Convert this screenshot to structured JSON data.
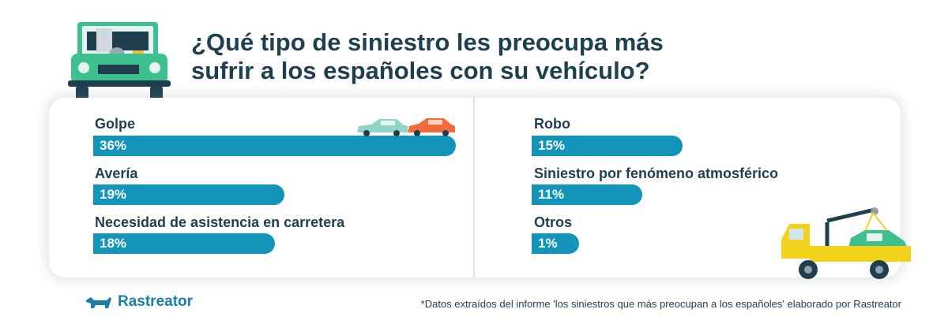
{
  "title": {
    "line1": "¿Qué tipo de siniestro les preocupa más",
    "line2": "sufrir a los españoles con su vehículo?"
  },
  "chart_data": {
    "type": "bar",
    "categories": [
      "Golpe",
      "Avería",
      "Necesidad de asistencia en carretera",
      "Robo",
      "Siniestro por fenómeno atmosférico",
      "Otros"
    ],
    "values": [
      36,
      19,
      18,
      15,
      11,
      1
    ],
    "value_labels": [
      "36%",
      "19%",
      "18%",
      "15%",
      "11%",
      "1%"
    ],
    "unit": "%",
    "orientation": "horizontal",
    "bar_color": "#1295b9"
  },
  "brand": {
    "name": "Rastreator"
  },
  "footnote": "*Datos extraídos del informe 'los siniestros que más preocupan a los españoles' elaborado por Rastreator"
}
